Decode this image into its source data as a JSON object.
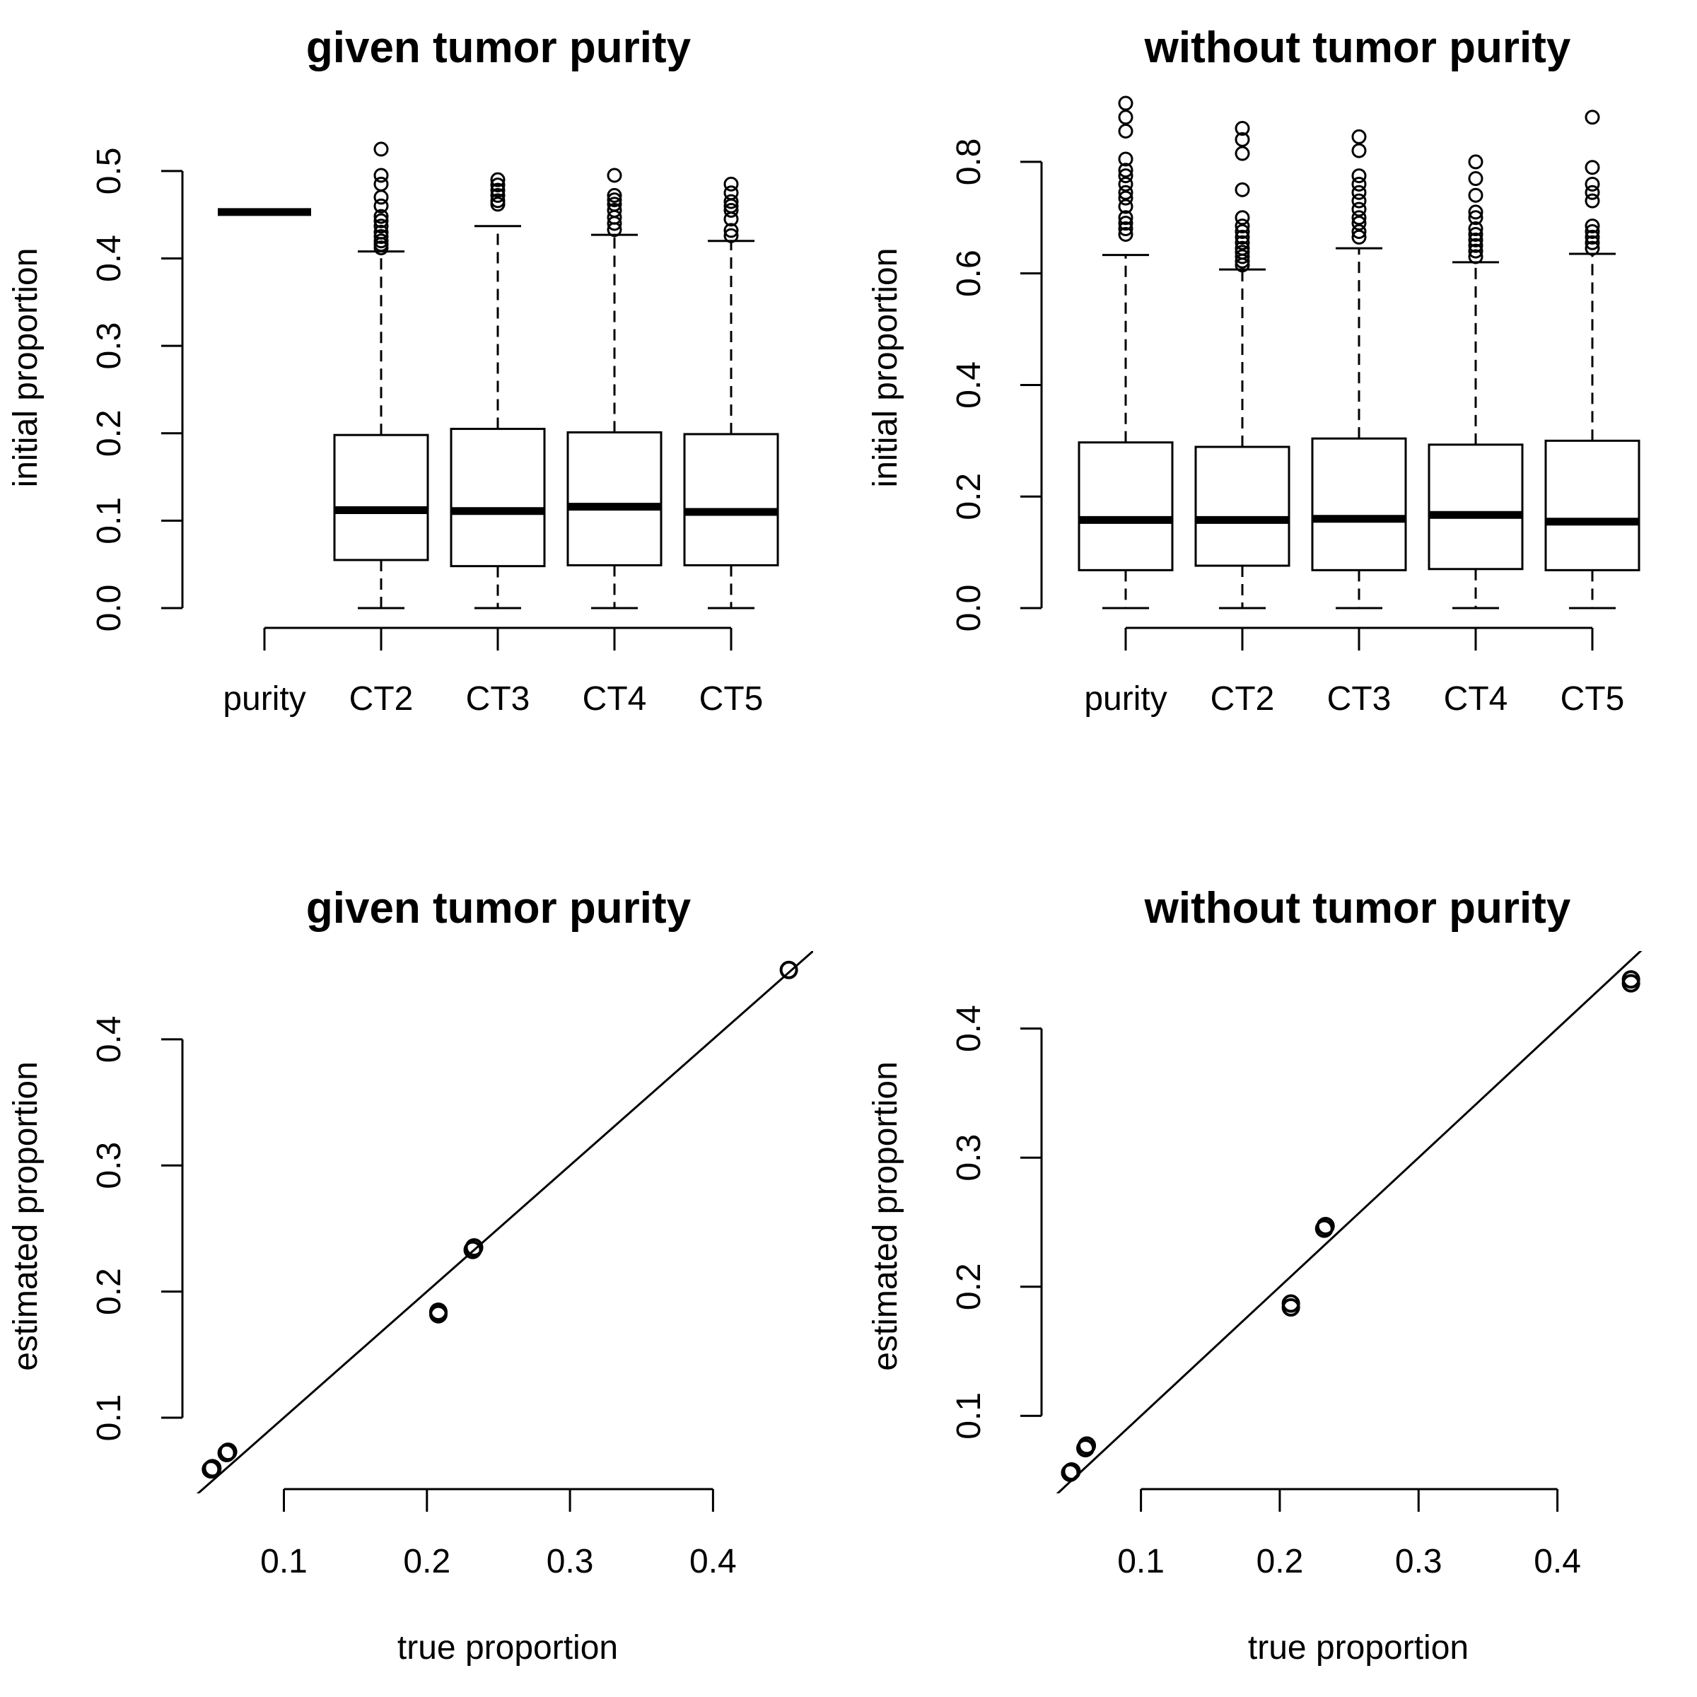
{
  "chart_data": [
    {
      "type": "boxplot",
      "title": "given tumor purity",
      "xlabel": "",
      "ylabel": "initial proportion",
      "ylim": [
        0,
        0.55
      ],
      "yticks": [
        {
          "value": 0.0,
          "label": "0.0"
        },
        {
          "value": 0.1,
          "label": "0.1"
        },
        {
          "value": 0.2,
          "label": "0.2"
        },
        {
          "value": 0.3,
          "label": "0.3"
        },
        {
          "value": 0.4,
          "label": "0.4"
        },
        {
          "value": 0.5,
          "label": "0.5"
        }
      ],
      "categories": [
        "purity",
        "CT2",
        "CT3",
        "CT4",
        "CT5"
      ],
      "boxes": [
        {
          "min": 0.453,
          "q1": 0.453,
          "median": 0.453,
          "q3": 0.453,
          "max": 0.453,
          "outliers": []
        },
        {
          "min": 0.0,
          "q1": 0.055,
          "median": 0.112,
          "q3": 0.198,
          "max": 0.408,
          "outliers": [
            0.412,
            0.416,
            0.42,
            0.425,
            0.43,
            0.437,
            0.443,
            0.448,
            0.46,
            0.47,
            0.485,
            0.495,
            0.525
          ]
        },
        {
          "min": 0.0,
          "q1": 0.048,
          "median": 0.111,
          "q3": 0.205,
          "max": 0.437,
          "outliers": [
            0.462,
            0.466,
            0.472,
            0.478,
            0.484,
            0.49
          ]
        },
        {
          "min": 0.0,
          "q1": 0.049,
          "median": 0.116,
          "q3": 0.201,
          "max": 0.427,
          "outliers": [
            0.433,
            0.44,
            0.447,
            0.455,
            0.462,
            0.467,
            0.472,
            0.495
          ]
        },
        {
          "min": 0.0,
          "q1": 0.049,
          "median": 0.11,
          "q3": 0.199,
          "max": 0.42,
          "outliers": [
            0.426,
            0.432,
            0.445,
            0.455,
            0.46,
            0.465,
            0.475,
            0.485
          ]
        }
      ]
    },
    {
      "type": "boxplot",
      "title": "without tumor purity",
      "xlabel": "",
      "ylabel": "initial proportion",
      "ylim": [
        0,
        0.9
      ],
      "yticks": [
        {
          "value": 0.0,
          "label": "0.0"
        },
        {
          "value": 0.2,
          "label": "0.2"
        },
        {
          "value": 0.4,
          "label": "0.4"
        },
        {
          "value": 0.6,
          "label": "0.6"
        },
        {
          "value": 0.8,
          "label": "0.8"
        }
      ],
      "categories": [
        "purity",
        "CT2",
        "CT3",
        "CT4",
        "CT5"
      ],
      "boxes": [
        {
          "min": 0.0,
          "q1": 0.068,
          "median": 0.158,
          "q3": 0.297,
          "max": 0.633,
          "outliers": [
            0.67,
            0.68,
            0.69,
            0.7,
            0.72,
            0.735,
            0.745,
            0.76,
            0.775,
            0.785,
            0.805,
            0.855,
            0.88,
            0.905
          ]
        },
        {
          "min": 0.0,
          "q1": 0.076,
          "median": 0.158,
          "q3": 0.289,
          "max": 0.607,
          "outliers": [
            0.615,
            0.622,
            0.63,
            0.638,
            0.645,
            0.655,
            0.665,
            0.675,
            0.685,
            0.7,
            0.75,
            0.815,
            0.84,
            0.86
          ]
        },
        {
          "min": 0.0,
          "q1": 0.068,
          "median": 0.16,
          "q3": 0.304,
          "max": 0.645,
          "outliers": [
            0.665,
            0.675,
            0.69,
            0.7,
            0.715,
            0.73,
            0.745,
            0.76,
            0.775,
            0.82,
            0.845
          ]
        },
        {
          "min": 0.0,
          "q1": 0.07,
          "median": 0.167,
          "q3": 0.293,
          "max": 0.62,
          "outliers": [
            0.63,
            0.64,
            0.65,
            0.66,
            0.67,
            0.68,
            0.7,
            0.71,
            0.74,
            0.77,
            0.8
          ]
        },
        {
          "min": 0.0,
          "q1": 0.068,
          "median": 0.155,
          "q3": 0.3,
          "max": 0.635,
          "outliers": [
            0.645,
            0.655,
            0.665,
            0.675,
            0.685,
            0.73,
            0.745,
            0.76,
            0.79,
            0.88
          ]
        }
      ]
    },
    {
      "type": "scatter",
      "title": "given tumor purity",
      "xlabel": "true proportion",
      "ylabel": "estimated proportion",
      "xlim": [
        0.035,
        0.47
      ],
      "ylim": [
        0.04,
        0.47
      ],
      "xticks": [
        {
          "value": 0.1,
          "label": "0.1"
        },
        {
          "value": 0.2,
          "label": "0.2"
        },
        {
          "value": 0.3,
          "label": "0.3"
        },
        {
          "value": 0.4,
          "label": "0.4"
        }
      ],
      "yticks": [
        {
          "value": 0.1,
          "label": "0.1"
        },
        {
          "value": 0.2,
          "label": "0.2"
        },
        {
          "value": 0.3,
          "label": "0.3"
        },
        {
          "value": 0.4,
          "label": "0.4"
        }
      ],
      "points": [
        {
          "x": 0.049,
          "y": 0.059
        },
        {
          "x": 0.05,
          "y": 0.06
        },
        {
          "x": 0.06,
          "y": 0.072
        },
        {
          "x": 0.061,
          "y": 0.073
        },
        {
          "x": 0.208,
          "y": 0.182
        },
        {
          "x": 0.208,
          "y": 0.184
        },
        {
          "x": 0.232,
          "y": 0.233
        },
        {
          "x": 0.233,
          "y": 0.235
        },
        {
          "x": 0.453,
          "y": 0.455
        }
      ],
      "reference_line": {
        "intercept": 0,
        "slope": 1
      }
    },
    {
      "type": "scatter",
      "title": "without tumor purity",
      "xlabel": "true proportion",
      "ylabel": "estimated proportion",
      "xlim": [
        0.035,
        0.47
      ],
      "ylim": [
        0.04,
        0.46
      ],
      "xticks": [
        {
          "value": 0.1,
          "label": "0.1"
        },
        {
          "value": 0.2,
          "label": "0.2"
        },
        {
          "value": 0.3,
          "label": "0.3"
        },
        {
          "value": 0.4,
          "label": "0.4"
        }
      ],
      "yticks": [
        {
          "value": 0.1,
          "label": "0.1"
        },
        {
          "value": 0.2,
          "label": "0.2"
        },
        {
          "value": 0.3,
          "label": "0.3"
        },
        {
          "value": 0.4,
          "label": "0.4"
        }
      ],
      "points": [
        {
          "x": 0.049,
          "y": 0.056
        },
        {
          "x": 0.05,
          "y": 0.057
        },
        {
          "x": 0.06,
          "y": 0.075
        },
        {
          "x": 0.061,
          "y": 0.077
        },
        {
          "x": 0.208,
          "y": 0.184
        },
        {
          "x": 0.208,
          "y": 0.187
        },
        {
          "x": 0.232,
          "y": 0.245
        },
        {
          "x": 0.233,
          "y": 0.247
        },
        {
          "x": 0.453,
          "y": 0.435
        },
        {
          "x": 0.453,
          "y": 0.438
        }
      ],
      "reference_line": {
        "intercept": 0,
        "slope": 1
      }
    }
  ]
}
